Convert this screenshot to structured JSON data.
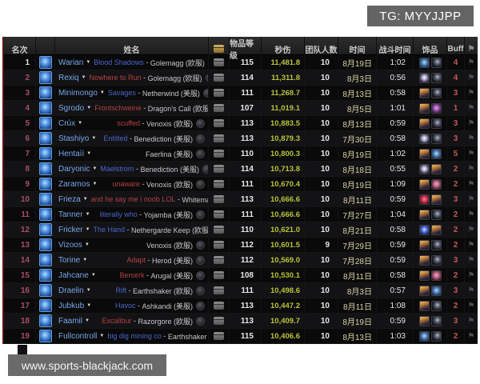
{
  "watermarks": {
    "telegram": "TG: MYYJJPP",
    "site": "www.sports-blackjack.com"
  },
  "colors": {
    "guild_blue": "#4a66cc",
    "guild_red": "#b54040",
    "dps_text": "#b9c23a",
    "rank_text": "#a84e62",
    "rank1_text": "#e2e2e2",
    "buff_text": "#c25858",
    "player_text": "#76a7e8"
  },
  "table": {
    "guild_separator": " - ",
    "header": {
      "rank": "名次",
      "name": "姓名",
      "loot_icon": "chest-icon",
      "item_level": "物品等级",
      "dps": "秒伤",
      "team_size": "团队人数",
      "date": "时间",
      "combat_time": "战斗时间",
      "trinkets": "饰品",
      "buff": "Buff",
      "flag_icon": "flag-icon"
    },
    "flag_glyph": "⚑",
    "arrow_glyph": "▼",
    "rows": [
      {
        "rank": "1",
        "rank_color": "#e2e2e2",
        "player": "Warian",
        "guild": "Blood Shadows",
        "guild_color": "#4a66cc",
        "server": "Golemagg (欧服)",
        "ilvl": "115",
        "dps": "11,481.8",
        "team": "10",
        "date": "8月19日",
        "combat_time": "1:02",
        "trinkets": [
          "frost",
          "moon"
        ],
        "buff": "4"
      },
      {
        "rank": "2",
        "player": "Rexiq",
        "guild": "Nowhere to Run",
        "guild_color": "#b54040",
        "server": "Golemagg (欧服)",
        "ilvl": "114",
        "dps": "11,311.8",
        "team": "10",
        "date": "8月3日",
        "combat_time": "0:56",
        "trinkets": [
          "orb",
          "moon"
        ],
        "buff": "4"
      },
      {
        "rank": "3",
        "player": "Minimongo",
        "guild": "Savages",
        "guild_color": "#4a66cc",
        "server": "Netherwind (美服)",
        "ilvl": "111",
        "dps": "11,268.7",
        "team": "10",
        "date": "8月13日",
        "combat_time": "0:58",
        "trinkets": [
          "flame",
          "moon"
        ],
        "buff": "3"
      },
      {
        "rank": "4",
        "player": "Sgrodo",
        "guild": "Frontschweine",
        "guild_color": "#b54040",
        "server": "Dragon's Call (欧服)",
        "ilvl": "107",
        "dps": "11,019.1",
        "team": "10",
        "date": "8月5日",
        "combat_time": "1:01",
        "trinkets": [
          "flame",
          "void"
        ],
        "buff": "1"
      },
      {
        "rank": "5",
        "player": "Crúx",
        "guild": "scuffed",
        "guild_color": "#b54040",
        "server": "Venoxis (欧服)",
        "ilvl": "113",
        "dps": "10,883.5",
        "team": "10",
        "date": "8月13日",
        "combat_time": "0:59",
        "trinkets": [
          "flame",
          "moon"
        ],
        "buff": "3"
      },
      {
        "rank": "6",
        "player": "Stashiyo",
        "guild": "Entitled",
        "guild_color": "#4a66cc",
        "server": "Benediction (美服)",
        "ilvl": "113",
        "dps": "10,879.3",
        "team": "10",
        "date": "7月30日",
        "combat_time": "0:58",
        "trinkets": [
          "orb",
          "moon"
        ],
        "buff": "3"
      },
      {
        "rank": "7",
        "player": "Hentaìì",
        "guild": "",
        "guild_color": "",
        "server": "Faerlina (美服)",
        "ilvl": "110",
        "dps": "10,800.3",
        "team": "10",
        "date": "8月19日",
        "combat_time": "1:02",
        "trinkets": [
          "flame",
          "frost"
        ],
        "buff": "5"
      },
      {
        "rank": "8",
        "player": "Daryonic",
        "guild": "Maelstrom",
        "guild_color": "#4a66cc",
        "server": "Benediction (美服)",
        "ilvl": "114",
        "dps": "10,713.8",
        "team": "10",
        "date": "8月18日",
        "combat_time": "0:55",
        "trinkets": [
          "orb",
          "flame"
        ],
        "buff": "2"
      },
      {
        "rank": "9",
        "player": "Zaramos",
        "guild": "unaware",
        "guild_color": "#b54040",
        "server": "Venoxis (欧服)",
        "ilvl": "111",
        "dps": "10,670.4",
        "team": "10",
        "date": "8月19日",
        "combat_time": "1:09",
        "trinkets": [
          "flame",
          "rose"
        ],
        "buff": "2"
      },
      {
        "rank": "10",
        "player": "Frieza",
        "guild": "and he say me i noob LOL",
        "guild_color": "#b54040",
        "server": "Whitemane (美服)",
        "ilvl": "113",
        "dps": "10,666.6",
        "team": "10",
        "date": "8月11日",
        "combat_time": "0:59",
        "trinkets": [
          "blood",
          "flame"
        ],
        "buff": "3"
      },
      {
        "rank": "11",
        "player": "Tanner",
        "guild": "literally who",
        "guild_color": "#4a66cc",
        "server": "Yojamba (美服)",
        "ilvl": "111",
        "dps": "10,666.6",
        "team": "10",
        "date": "7月27日",
        "combat_time": "1:04",
        "trinkets": [
          "flame",
          "moon"
        ],
        "buff": "2"
      },
      {
        "rank": "12",
        "player": "Fricker",
        "guild": "The Hand",
        "guild_color": "#4a66cc",
        "server": "Nethergarde Keep (欧服)",
        "ilvl": "110",
        "dps": "10,621.0",
        "team": "10",
        "date": "8月21日",
        "combat_time": "0:58",
        "trinkets": [
          "arcane",
          "flame"
        ],
        "buff": "2"
      },
      {
        "rank": "13",
        "player": "Vizoos",
        "guild": "",
        "guild_color": "",
        "server": "Venoxis (欧服)",
        "ilvl": "112",
        "dps": "10,601.5",
        "team": "9",
        "date": "7月29日",
        "combat_time": "0:59",
        "trinkets": [
          "flame",
          "moon"
        ],
        "buff": "2"
      },
      {
        "rank": "14",
        "player": "Torine",
        "guild": "Adapt",
        "guild_color": "#b54040",
        "server": "Herod (美服)",
        "ilvl": "112",
        "dps": "10,569.0",
        "team": "10",
        "date": "7月28日",
        "combat_time": "0:59",
        "trinkets": [
          "flame",
          "moon"
        ],
        "buff": "3"
      },
      {
        "rank": "15",
        "player": "Jahcane",
        "guild": "Berserk",
        "guild_color": "#b54040",
        "server": "Arugal (美服)",
        "ilvl": "108",
        "dps": "10,530.1",
        "team": "10",
        "date": "8月11日",
        "combat_time": "0:58",
        "trinkets": [
          "flame",
          "rose"
        ],
        "buff": "2"
      },
      {
        "rank": "16",
        "player": "Draelin",
        "guild": "Rift",
        "guild_color": "#4a66cc",
        "server": "Earthshaker (欧服)",
        "ilvl": "111",
        "dps": "10,498.6",
        "team": "10",
        "date": "8月3日",
        "combat_time": "0:57",
        "trinkets": [
          "flame",
          "frost"
        ],
        "buff": "3"
      },
      {
        "rank": "17",
        "player": "Jubkub",
        "guild": "Havoc",
        "guild_color": "#4a66cc",
        "server": "Ashkandi (美服)",
        "ilvl": "113",
        "dps": "10,447.2",
        "team": "10",
        "date": "8月11日",
        "combat_time": "1:08",
        "trinkets": [
          "flame",
          "moon"
        ],
        "buff": "2"
      },
      {
        "rank": "18",
        "player": "Faamil",
        "guild": "Excalibur",
        "guild_color": "#b54040",
        "server": "Razorgore (欧服)",
        "ilvl": "113",
        "dps": "10,409.7",
        "team": "10",
        "date": "8月19日",
        "combat_time": "0:59",
        "trinkets": [
          "flame",
          "moon"
        ],
        "buff": "3"
      },
      {
        "rank": "19",
        "player": "Fullcontroll",
        "guild": "big dig mining co",
        "guild_color": "#4a66cc",
        "server": "Earthshaker (欧服)",
        "ilvl": "115",
        "dps": "10,406.6",
        "team": "10",
        "date": "8月13日",
        "combat_time": "1:03",
        "trinkets": [
          "frost",
          "moon"
        ],
        "buff": "2"
      }
    ]
  }
}
